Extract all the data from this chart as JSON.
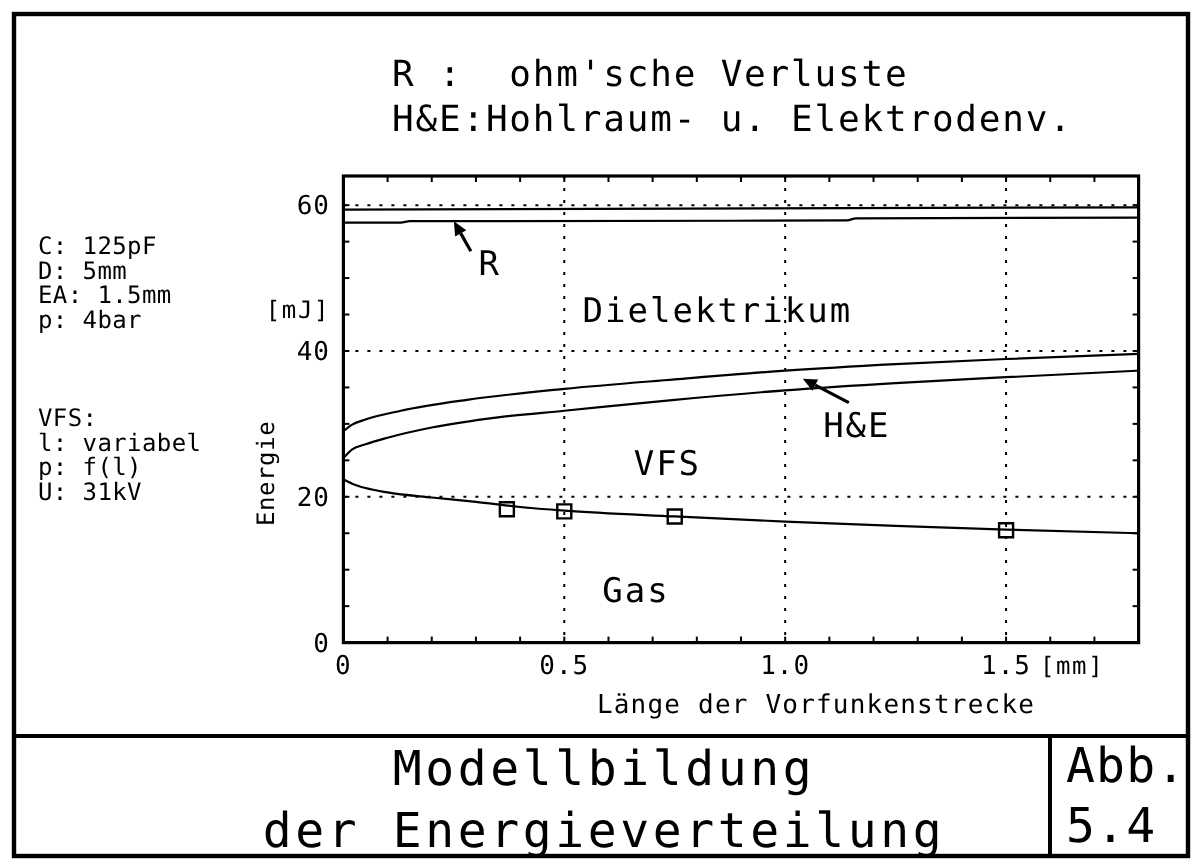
{
  "chart_data": {
    "type": "line",
    "title": "Modellbildung der Energieverteilung",
    "xlabel": "Länge der Vorfunkenstrecke",
    "ylabel": "Energie",
    "xlim": [
      0,
      1.8
    ],
    "ylim": [
      0,
      64
    ],
    "xticks": [
      0,
      {
        "value": 0.1,
        "label": null
      },
      {
        "value": 0.2,
        "label": null
      },
      {
        "value": 0.3,
        "label": null
      },
      {
        "value": 0.4,
        "label": null
      },
      0.5,
      {
        "value": 0.6,
        "label": null
      },
      {
        "value": 0.7,
        "label": null
      },
      {
        "value": 0.8,
        "label": null
      },
      {
        "value": 0.9,
        "label": null
      },
      {
        "value": 1,
        "label": "1.0"
      },
      {
        "value": 1.1,
        "label": null
      },
      {
        "value": 1.2,
        "label": null
      },
      {
        "value": 1.3,
        "label": null
      },
      {
        "value": 1.4,
        "label": null
      },
      1.5,
      {
        "value": 1.6,
        "label": null
      },
      {
        "value": 1.7,
        "label": null
      }
    ],
    "yticks": [
      0,
      {
        "value": 5,
        "label": null
      },
      {
        "value": 10,
        "label": null
      },
      {
        "value": 15,
        "label": null
      },
      20,
      {
        "value": 25,
        "label": null
      },
      {
        "value": 30,
        "label": null
      },
      {
        "value": 35,
        "label": null
      },
      40,
      {
        "value": 45,
        "label": null
      },
      {
        "value": 50,
        "label": null
      },
      {
        "value": 55,
        "label": null
      },
      60
    ],
    "grid": true,
    "series": [
      {
        "color": "#000000",
        "x": [
          0,
          0.02,
          0.05,
          0.1,
          0.2,
          0.3,
          0.4,
          0.5,
          0.75,
          1,
          1.25,
          1.5,
          1.8
        ],
        "values": [
          22.4,
          21.8,
          21.2,
          20.6,
          19.9,
          19.3,
          18.6,
          18.1,
          17.3,
          16.6,
          16.0,
          15.5,
          15.0
        ]
      },
      {
        "color": "#000000",
        "x": [
          0,
          0.02,
          0.05,
          0.1,
          0.2,
          0.35,
          0.5,
          0.75,
          1,
          1.25,
          1.5,
          1.8
        ],
        "values": [
          25.3,
          26.5,
          27.2,
          28.1,
          29.5,
          30.9,
          31.8,
          33.3,
          34.6,
          35.6,
          36.4,
          37.3
        ]
      },
      {
        "color": "#000000",
        "x": [
          0,
          0.02,
          0.05,
          0.13,
          0.28,
          0.5,
          0.75,
          1,
          1.25,
          1.5,
          1.8
        ],
        "values": [
          29.0,
          29.9,
          30.6,
          31.8,
          33.3,
          34.8,
          36.1,
          37.3,
          38.2,
          38.9,
          39.6
        ]
      },
      {
        "color": "#000000",
        "x": [
          0,
          0.13,
          0.15,
          1.14,
          1.16,
          1.8
        ],
        "values": [
          57.6,
          57.6,
          57.8,
          57.9,
          58.2,
          58.3
        ]
      },
      {
        "color": "#000000",
        "x": [
          0,
          1.8
        ],
        "values": [
          59.4,
          59.7
        ]
      },
      {
        "type": "scatter",
        "marker": "square",
        "color": "#000000",
        "x": [
          0.37,
          0.5,
          0.75,
          1.5
        ],
        "values": [
          18.3,
          18.0,
          17.3,
          15.4
        ]
      }
    ],
    "annotations": [
      "R :  ohm'sche Verluste",
      "H&E:Hohlraum- u. Elektrodenv.",
      "C: 125pF",
      "D: 5mm",
      "EA: 1.5mm",
      "p: 4bar",
      "VFS:",
      "l: variabel",
      "p: f(l)",
      "U: 31kV",
      "[mJ]",
      "[mm]",
      "Abb. 5.4",
      "Dielektrikum",
      "VFS",
      "Gas",
      {
        "text": "R",
        "x": 0.25,
        "y": 57.8
      },
      {
        "text": "H&E",
        "x": 1.04,
        "y": 36.2
      }
    ]
  }
}
